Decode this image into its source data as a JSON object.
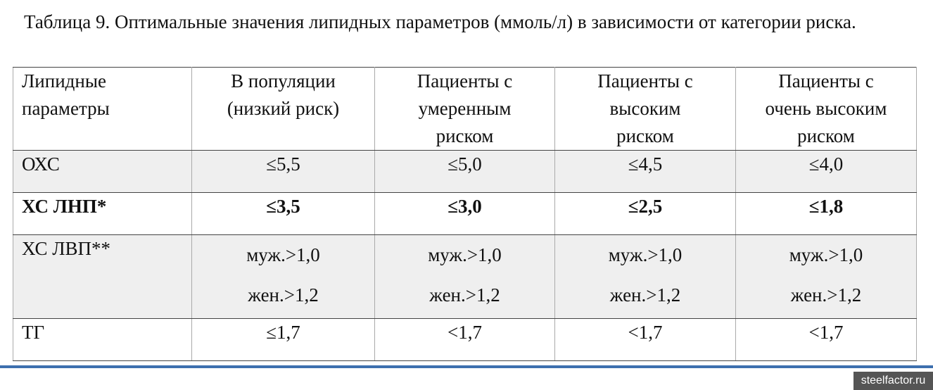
{
  "title": "Таблица 9. Оптимальные значения липидных параметров (ммоль/л) в зависимости от категории риска.",
  "table": {
    "header": [
      [
        "Липидные",
        "параметры"
      ],
      [
        "В популяции",
        "(низкий риск)"
      ],
      [
        "Пациенты с",
        "умеренным",
        "риском"
      ],
      [
        "Пациенты с",
        "высоким",
        "риском"
      ],
      [
        "Пациенты с",
        "очень высоким",
        "риском"
      ]
    ],
    "rows": [
      {
        "label": "ОХС",
        "cells": [
          "≤5,5",
          "≤5,0",
          "≤4,5",
          "≤4,0"
        ]
      },
      {
        "label": "ХС ЛНП*",
        "bold": true,
        "cells": [
          "≤3,5",
          "≤3,0",
          "≤2,5",
          "≤1,8"
        ]
      },
      {
        "label": "ХС ЛВП**",
        "cells": [
          [
            "муж.>1,0",
            "жен.>1,2"
          ],
          [
            "муж.>1,0",
            "жен.>1,2"
          ],
          [
            "муж.>1,0",
            "жен.>1,2"
          ],
          [
            "муж.>1,0",
            "жен.>1,2"
          ]
        ]
      },
      {
        "label": "ТГ",
        "cells": [
          "≤1,7",
          "<1,7",
          "<1,7",
          "<1,7"
        ]
      }
    ]
  },
  "watermark": "steelfactor.ru"
}
